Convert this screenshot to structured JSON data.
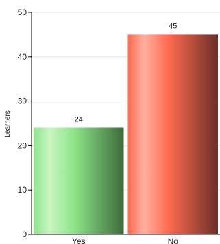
{
  "chart_data": {
    "type": "bar",
    "categories": [
      "Yes",
      "No"
    ],
    "values": [
      24,
      45
    ],
    "data_labels": [
      "24",
      "45"
    ],
    "ylabel": "Learners",
    "xlabel": "",
    "ylim": [
      0,
      50
    ],
    "yticks": [
      0,
      10,
      20,
      30,
      40,
      50
    ],
    "grid": true,
    "legend": "none",
    "colors": {
      "Yes": {
        "light": "#c8f5c0",
        "base": "#8ee48a",
        "dark": "#3d6b3a"
      },
      "No": {
        "light": "#ffb0a0",
        "base": "#ff6a50",
        "dark": "#6b3028"
      }
    }
  }
}
